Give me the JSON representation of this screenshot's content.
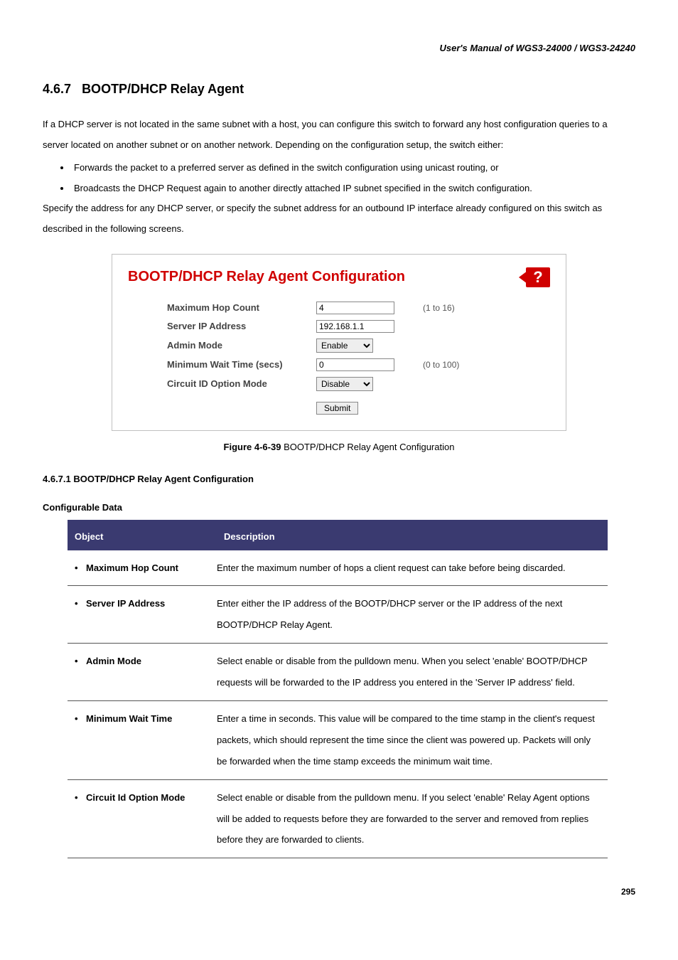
{
  "header": "User's  Manual  of  WGS3-24000  /  WGS3-24240",
  "section_number": "4.6.7",
  "section_title": "BOOTP/DHCP Relay Agent",
  "intro_p1": "If a DHCP server is not located in the same subnet with a host, you can configure this switch to forward any host configuration queries to a server located on another subnet or on another network. Depending on the configuration setup, the switch either:",
  "intro_bullets": [
    "Forwards the packet to a preferred server as defined in the switch configuration using unicast routing, or",
    "Broadcasts the DHCP Request again to another directly attached IP subnet specified in the switch configuration."
  ],
  "intro_p2": "Specify the address for any DHCP server, or specify the subnet address for an outbound IP interface already configured on this switch as described in the following screens.",
  "config_panel": {
    "title": "BOOTP/DHCP Relay Agent Configuration",
    "help_glyph": "?",
    "rows": [
      {
        "label": "Maximum Hop Count",
        "type": "input",
        "value": "4",
        "hint": "(1 to 16)"
      },
      {
        "label": "Server IP Address",
        "type": "input",
        "value": "192.168.1.1",
        "hint": ""
      },
      {
        "label": "Admin Mode",
        "type": "select",
        "value": "Enable",
        "hint": ""
      },
      {
        "label": "Minimum Wait Time (secs)",
        "type": "input",
        "value": "0",
        "hint": "(0 to 100)"
      },
      {
        "label": "Circuit ID Option Mode",
        "type": "select",
        "value": "Disable",
        "hint": ""
      }
    ],
    "submit_label": "Submit"
  },
  "figure_label": "Figure 4-6-39",
  "figure_text": " BOOTP/DHCP Relay Agent Configuration",
  "subsection_title": "4.6.7.1 BOOTP/DHCP Relay Agent Configuration",
  "table_title": "Configurable Data",
  "table": {
    "col_object": "Object",
    "col_desc": "Description",
    "rows": [
      {
        "obj": "Maximum Hop Count",
        "desc": "Enter the maximum number of hops a client request can take before being discarded."
      },
      {
        "obj": "Server IP Address",
        "desc": "Enter either the IP address of the BOOTP/DHCP server or the IP address of the next BOOTP/DHCP Relay Agent."
      },
      {
        "obj": "Admin Mode",
        "desc": "Select enable or disable from the pulldown menu. When you select 'enable' BOOTP/DHCP requests will be forwarded to the IP address you entered in the 'Server IP address' field."
      },
      {
        "obj": "Minimum Wait Time",
        "desc": "Enter a time in seconds. This value will be compared to the time stamp in the client's request packets, which should represent the time since the client was powered up. Packets will only be forwarded when the time stamp exceeds the minimum wait time."
      },
      {
        "obj": "Circuit Id Option Mode",
        "desc": "Select enable or disable from the pulldown menu. If you select 'enable' Relay Agent options will be added to requests before they are forwarded to the server and removed from replies before they are forwarded to clients."
      }
    ]
  },
  "page_number": "295"
}
